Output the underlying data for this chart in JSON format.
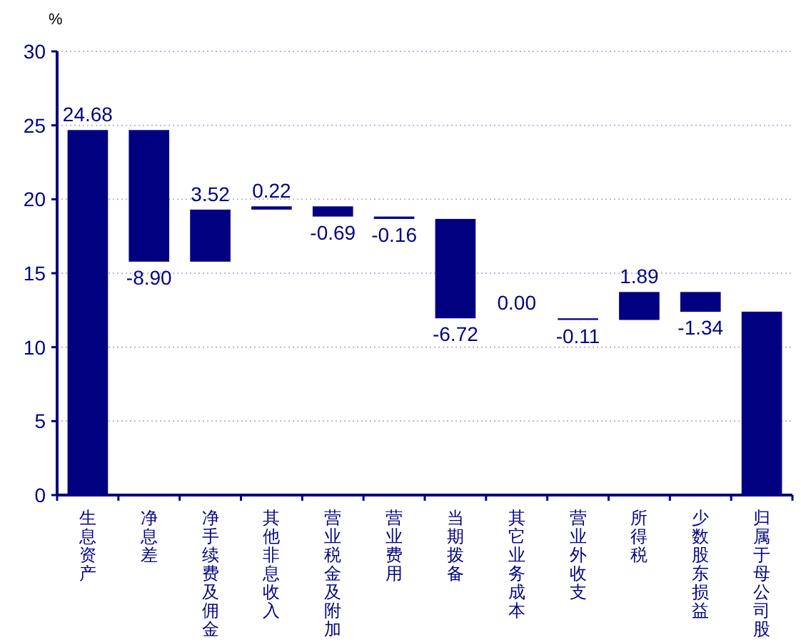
{
  "chart_data": {
    "type": "bar",
    "ylabel": "%",
    "categories": [
      "生息资产",
      "净息差",
      "净手续费及佣金",
      "其他非息收入",
      "营业税金及附加",
      "营业费用",
      "当期拨备",
      "其它业务成本",
      "营业外收支",
      "所得税",
      "少数股东损益",
      "归属于母公司股"
    ],
    "values": [
      24.68,
      -8.9,
      3.52,
      0.22,
      -0.69,
      -0.16,
      -6.72,
      0.0,
      -0.11,
      1.89,
      -1.34,
      12.4
    ],
    "base": [
      0,
      24.68,
      15.78,
      19.3,
      19.52,
      18.83,
      18.67,
      11.95,
      11.95,
      11.84,
      13.73,
      0
    ],
    "value_labels": [
      "24.68",
      "-8.90",
      "3.52",
      "0.22",
      "-0.69",
      "-0.16",
      "-6.72",
      "0.00",
      "-0.11",
      "1.89",
      "-1.34",
      null
    ],
    "color": "#000080",
    "ylim": [
      0,
      30
    ],
    "yticks": [
      0,
      5,
      10,
      15,
      20,
      25,
      30
    ],
    "grid": "y"
  }
}
